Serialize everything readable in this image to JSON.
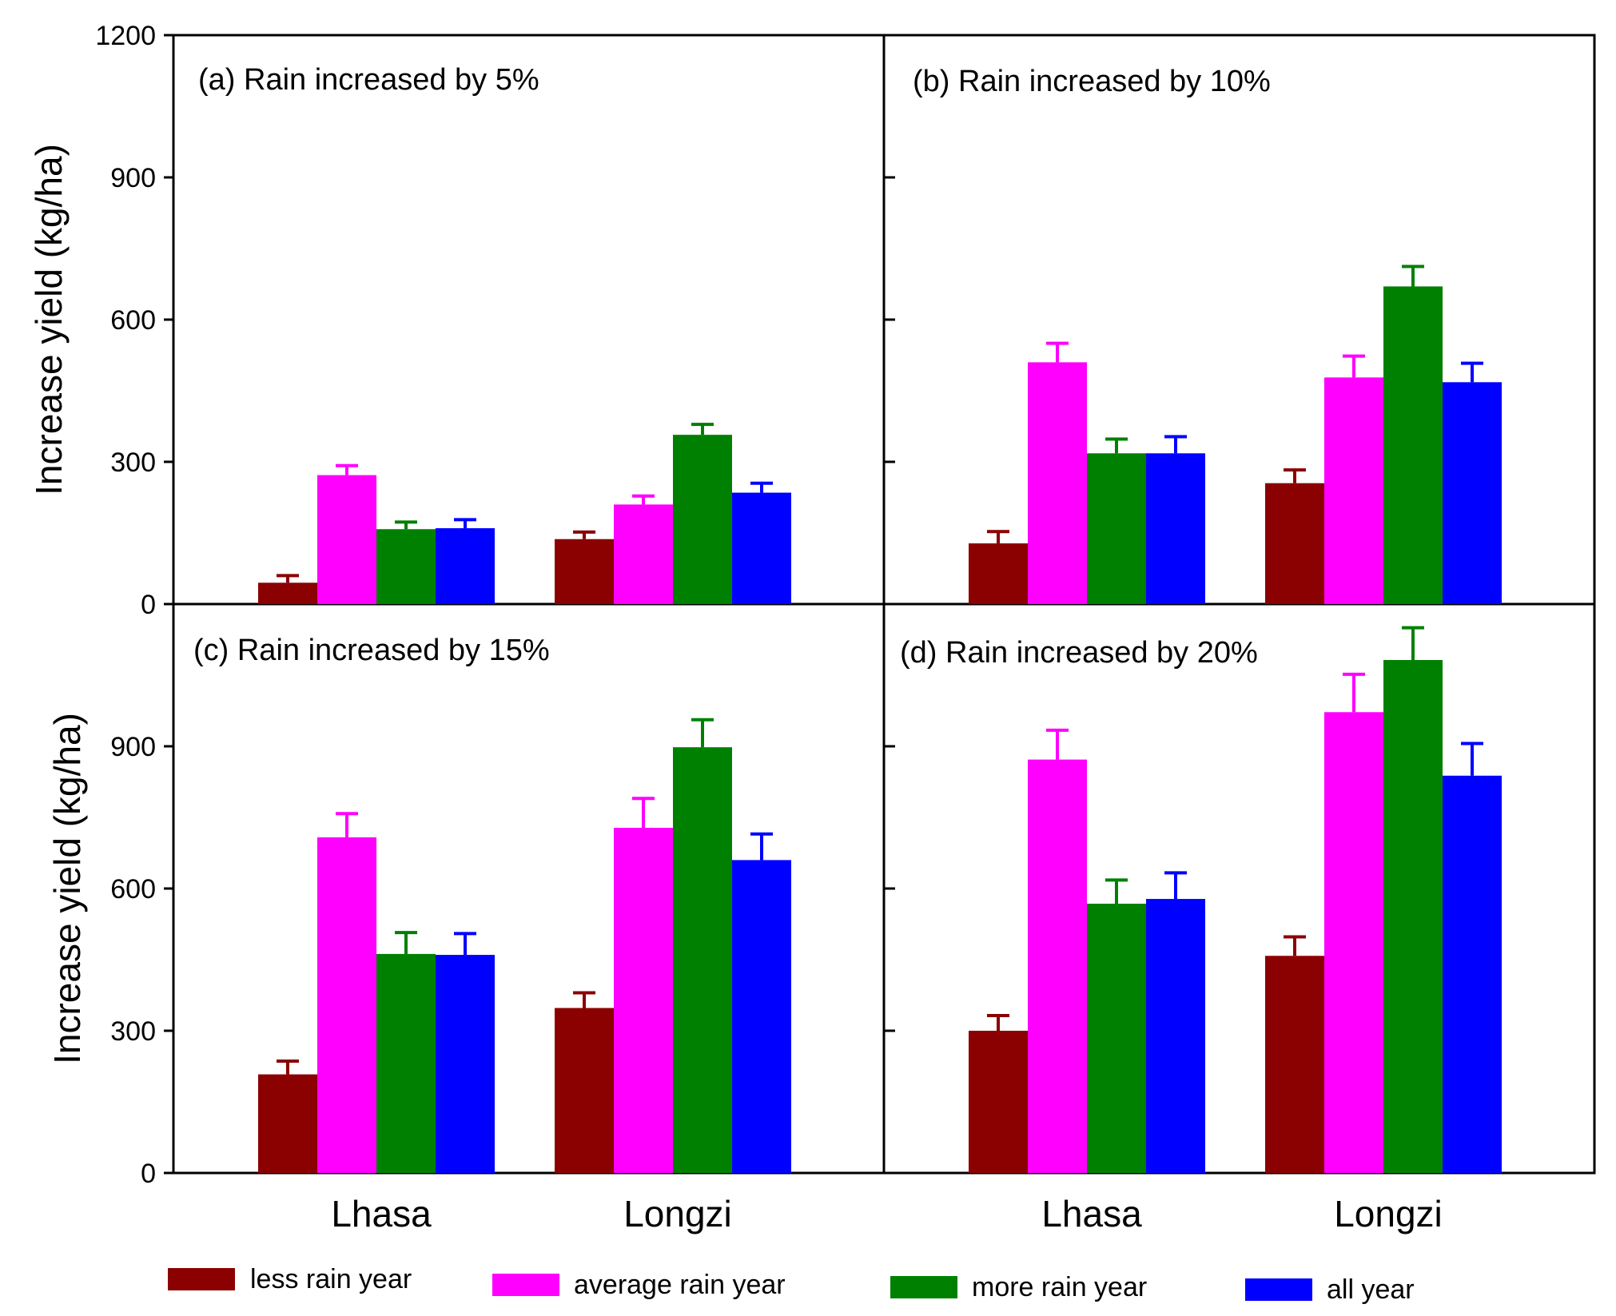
{
  "chart_data": {
    "type": "bar",
    "categories": [
      "Lhasa",
      "Longzi"
    ],
    "ylabel": "Increase yield (kg/ha)",
    "ylim": [
      0,
      1200
    ],
    "yticks": [
      0,
      300,
      600,
      900,
      1200
    ],
    "yticks_lower": [
      0,
      300,
      600,
      900
    ],
    "legend": [
      {
        "name": "less rain year",
        "color": "#8b0000"
      },
      {
        "name": "average rain year",
        "color": "#ff00ff"
      },
      {
        "name": "more rain year",
        "color": "#008000"
      },
      {
        "name": "all year",
        "color": "#0000ff"
      }
    ],
    "panels": [
      {
        "title": "(a) Rain increased by 5%",
        "series": [
          {
            "name": "less rain year",
            "values": [
              45,
              137
            ],
            "errors": [
              15,
              15
            ]
          },
          {
            "name": "average rain year",
            "values": [
              272,
              210
            ],
            "errors": [
              20,
              18
            ]
          },
          {
            "name": "more rain year",
            "values": [
              158,
              357
            ],
            "errors": [
              15,
              22
            ]
          },
          {
            "name": "all year",
            "values": [
              160,
              235
            ],
            "errors": [
              18,
              20
            ]
          }
        ]
      },
      {
        "title": "(b) Rain increased by 10%",
        "series": [
          {
            "name": "less rain year",
            "values": [
              128,
              255
            ],
            "errors": [
              25,
              28
            ]
          },
          {
            "name": "average rain year",
            "values": [
              510,
              478
            ],
            "errors": [
              40,
              45
            ]
          },
          {
            "name": "more rain year",
            "values": [
              318,
              670
            ],
            "errors": [
              30,
              42
            ]
          },
          {
            "name": "all year",
            "values": [
              318,
              468
            ],
            "errors": [
              35,
              40
            ]
          }
        ]
      },
      {
        "title": "(c) Rain increased by 15%",
        "series": [
          {
            "name": "less rain year",
            "values": [
              208,
              348
            ],
            "errors": [
              28,
              32
            ]
          },
          {
            "name": "average rain year",
            "values": [
              708,
              728
            ],
            "errors": [
              50,
              62
            ]
          },
          {
            "name": "more rain year",
            "values": [
              462,
              898
            ],
            "errors": [
              45,
              58
            ]
          },
          {
            "name": "all year",
            "values": [
              460,
              660
            ],
            "errors": [
              45,
              55
            ]
          }
        ]
      },
      {
        "title": "(d) Rain increased by 20%",
        "series": [
          {
            "name": "less rain year",
            "values": [
              300,
              458
            ],
            "errors": [
              32,
              40
            ]
          },
          {
            "name": "average rain year",
            "values": [
              872,
              972
            ],
            "errors": [
              62,
              80
            ]
          },
          {
            "name": "more rain year",
            "values": [
              568,
              1082
            ],
            "errors": [
              50,
              68
            ]
          },
          {
            "name": "all year",
            "values": [
              578,
              838
            ],
            "errors": [
              55,
              68
            ]
          }
        ]
      }
    ]
  }
}
